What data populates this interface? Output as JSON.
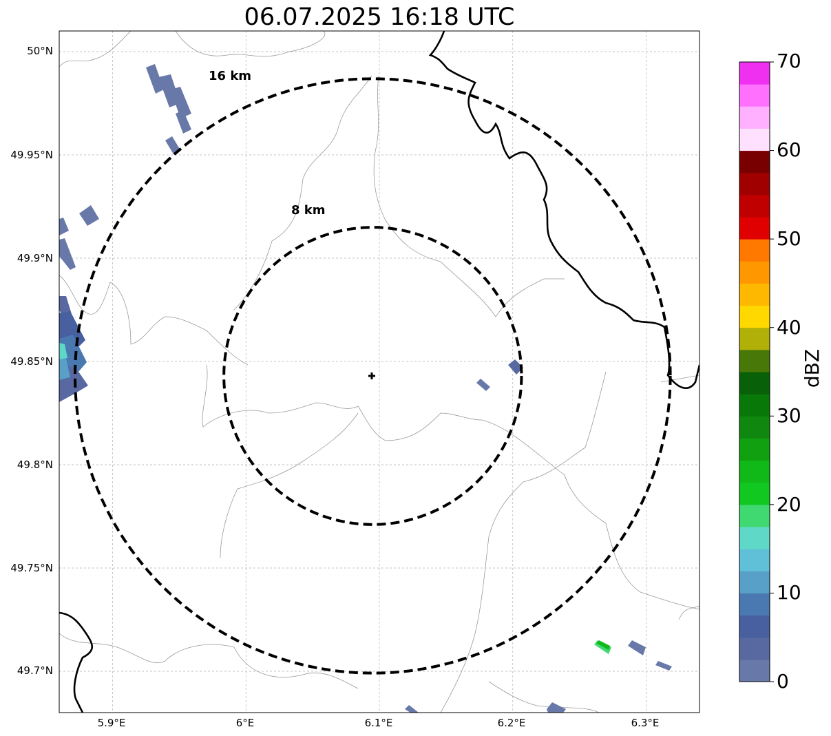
{
  "title": "06.07.2025 16:18 UTC",
  "map": {
    "lat_labels": [
      "50°N",
      "49.95°N",
      "49.9°N",
      "49.85°N",
      "49.8°N",
      "49.75°N",
      "49.7°N"
    ],
    "lon_labels": [
      "5.9°E",
      "6°E",
      "6.1°E",
      "6.2°E",
      "6.3°E"
    ],
    "range_rings": [
      {
        "label": "8 km",
        "radius_km": 8
      },
      {
        "label": "16 km",
        "radius_km": 16
      }
    ],
    "radar_site": {
      "lon": 6.095,
      "lat": 49.843
    },
    "gridlines": true
  },
  "colorbar": {
    "label": "dBZ",
    "ticks": [
      "0",
      "10",
      "20",
      "30",
      "40",
      "50",
      "60",
      "70"
    ],
    "min": 0,
    "max": 70,
    "step": 2.5,
    "colors": [
      "#6878a8",
      "#5868a0",
      "#4860a0",
      "#4a78b0",
      "#58a0c8",
      "#60c0d8",
      "#60d8c8",
      "#40d870",
      "#10c820",
      "#10b818",
      "#10a010",
      "#108810",
      "#087808",
      "#086008",
      "#487808",
      "#b0b008",
      "#ffd800",
      "#ffb800",
      "#ff9800",
      "#ff7800",
      "#e00000",
      "#c00000",
      "#a00000",
      "#780000",
      "#ffe0ff",
      "#ffb0ff",
      "#ff70ff",
      "#f030f0"
    ]
  }
}
